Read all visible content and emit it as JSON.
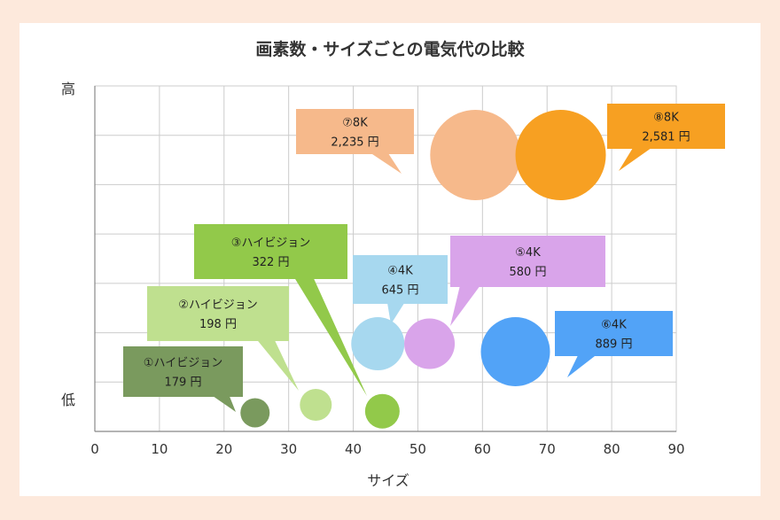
{
  "chart_data": {
    "type": "scatter",
    "title": "画素数・サイズごとの電気代の比較",
    "xlabel": "サイズ",
    "ylabel_high": "高",
    "ylabel_low": "低",
    "xlim": [
      0,
      90
    ],
    "xticks": [
      "0",
      "10",
      "20",
      "30",
      "40",
      "50",
      "60",
      "70",
      "80",
      "90"
    ],
    "ylim": [
      0,
      6.5
    ],
    "grid": true,
    "points": [
      {
        "id": "p1",
        "label": "①ハイビジョン",
        "price": "179 円",
        "x": 24.8,
        "y": 0.35,
        "size": 0.55,
        "color": "#7a9a5e"
      },
      {
        "id": "p2",
        "label": "②ハイビジョン",
        "price": "198 円",
        "x": 34.2,
        "y": 0.5,
        "size": 0.6,
        "color": "#bfe08f"
      },
      {
        "id": "p3",
        "label": "③ハイビジョン",
        "price": "322 円",
        "x": 44.5,
        "y": 0.38,
        "size": 0.65,
        "color": "#92c94a"
      },
      {
        "id": "p4",
        "label": "④4K",
        "price": "645 円",
        "x": 43.8,
        "y": 1.65,
        "size": 1.0,
        "color": "#a7d8ef"
      },
      {
        "id": "p5",
        "label": "⑤4K",
        "price": "580 円",
        "x": 51.8,
        "y": 1.65,
        "size": 0.95,
        "color": "#d9a4ea"
      },
      {
        "id": "p6",
        "label": "⑥4K",
        "price": "889 円",
        "x": 65.1,
        "y": 1.5,
        "size": 1.3,
        "color": "#52a3f7"
      },
      {
        "id": "p7",
        "label": "⑦8K",
        "price": "2,235 円",
        "x": 58.9,
        "y": 5.2,
        "size": 1.7,
        "color": "#f6b98b"
      },
      {
        "id": "p8",
        "label": "⑧8K",
        "price": "2,581 円",
        "x": 72.1,
        "y": 5.2,
        "size": 1.7,
        "color": "#f7a022"
      }
    ]
  }
}
